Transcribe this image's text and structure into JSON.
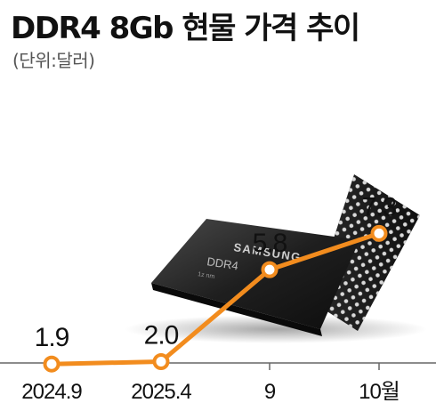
{
  "chart_data": {
    "type": "line",
    "title": "DDR4 8Gb 현물 가격 추이",
    "subtitle": "(단위:달러)",
    "categories": [
      "2024.9",
      "2025.4",
      "9",
      "10월"
    ],
    "values": [
      1.9,
      2.0,
      5.8,
      7.3
    ],
    "data_labels": [
      "1.9",
      "2.0",
      "5.8",
      "7.3"
    ],
    "ylim": [
      0,
      8
    ],
    "grid": false,
    "legend": "none"
  },
  "colors": {
    "line": "#F28C1E",
    "marker_fill": "#ffffff",
    "axis": "#666666",
    "text": "#111111"
  },
  "decoration": {
    "chip_brand": "SAMSUNG",
    "chip_model": "DDR4",
    "chip_note": "1z nm"
  }
}
